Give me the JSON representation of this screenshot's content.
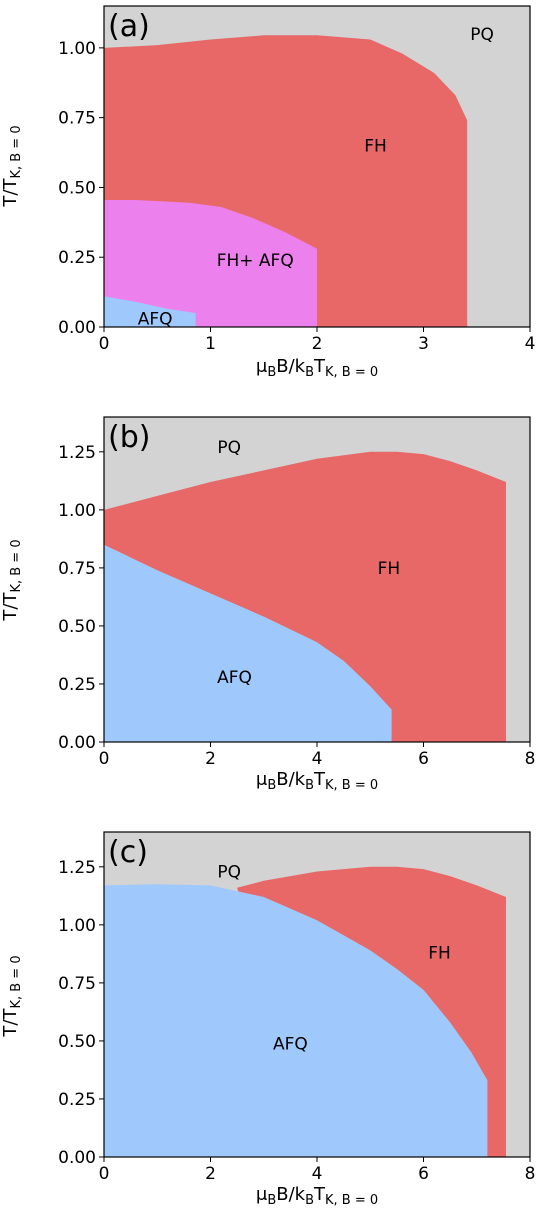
{
  "colors": {
    "PQ": "#d3d3d3",
    "FH": "#e86868",
    "AFQ": "#9fc9fc",
    "FH+ AFQ": "#ec80ec",
    "axis": "#000000"
  },
  "chart_data": [
    {
      "type": "area",
      "panel_label": "(a)",
      "xlabel": "μ_B B/k_B T_{K, B = 0}",
      "ylabel": "T/T_{K, B = 0}",
      "xlim": [
        0,
        4
      ],
      "ylim": [
        0,
        1.15
      ],
      "xticks": [
        0,
        1,
        2,
        3,
        4
      ],
      "xtick_labels": [
        "0",
        "1",
        "2",
        "3",
        "4"
      ],
      "yticks": [
        0,
        0.25,
        0.5,
        0.75,
        1.0
      ],
      "ytick_labels": [
        "0.00",
        "0.25",
        "0.50",
        "0.75",
        "1.00"
      ],
      "background_phase": "PQ",
      "grid": false,
      "regions": [
        {
          "phase": "FH",
          "boundary": [
            [
              0,
              1.0
            ],
            [
              0.5,
              1.01
            ],
            [
              1.0,
              1.03
            ],
            [
              1.5,
              1.045
            ],
            [
              2.0,
              1.045
            ],
            [
              2.5,
              1.03
            ],
            [
              2.8,
              0.98
            ],
            [
              3.1,
              0.91
            ],
            [
              3.3,
              0.83
            ],
            [
              3.41,
              0.74
            ],
            [
              3.41,
              0
            ],
            [
              0,
              0
            ]
          ]
        },
        {
          "phase": "FH+ AFQ",
          "boundary": [
            [
              0,
              0.455
            ],
            [
              0.3,
              0.455
            ],
            [
              0.8,
              0.445
            ],
            [
              1.1,
              0.43
            ],
            [
              1.4,
              0.39
            ],
            [
              1.7,
              0.34
            ],
            [
              2.0,
              0.28
            ],
            [
              2.0,
              0
            ],
            [
              0,
              0
            ]
          ]
        },
        {
          "phase": "AFQ",
          "boundary": [
            [
              0,
              0.11
            ],
            [
              0.3,
              0.09
            ],
            [
              0.6,
              0.065
            ],
            [
              0.86,
              0.05
            ],
            [
              0.86,
              0
            ],
            [
              0,
              0
            ]
          ]
        }
      ],
      "annotations": [
        {
          "text": "PQ",
          "x": 3.55,
          "y": 1.05
        },
        {
          "text": "FH",
          "x": 2.55,
          "y": 0.65
        },
        {
          "text": "FH+ AFQ",
          "x": 1.42,
          "y": 0.24
        },
        {
          "text": "AFQ",
          "x": 0.48,
          "y": 0.03
        }
      ]
    },
    {
      "type": "area",
      "panel_label": "(b)",
      "xlabel": "μ_B B/k_B T_{K, B = 0}",
      "ylabel": "T/T_{K, B = 0}",
      "xlim": [
        0,
        8
      ],
      "ylim": [
        0,
        1.4
      ],
      "xticks": [
        0,
        2,
        4,
        6,
        8
      ],
      "xtick_labels": [
        "0",
        "2",
        "4",
        "6",
        "8"
      ],
      "yticks": [
        0,
        0.25,
        0.5,
        0.75,
        1.0,
        1.25
      ],
      "ytick_labels": [
        "0.00",
        "0.25",
        "0.50",
        "0.75",
        "1.00",
        "1.25"
      ],
      "background_phase": "PQ",
      "grid": false,
      "regions": [
        {
          "phase": "FH",
          "boundary": [
            [
              0,
              1.0
            ],
            [
              1,
              1.06
            ],
            [
              2,
              1.12
            ],
            [
              3,
              1.17
            ],
            [
              4,
              1.22
            ],
            [
              5,
              1.25
            ],
            [
              5.5,
              1.25
            ],
            [
              6,
              1.24
            ],
            [
              6.5,
              1.21
            ],
            [
              7,
              1.17
            ],
            [
              7.55,
              1.12
            ],
            [
              7.55,
              0
            ],
            [
              0,
              0
            ]
          ]
        },
        {
          "phase": "AFQ",
          "boundary": [
            [
              0,
              0.85
            ],
            [
              1,
              0.74
            ],
            [
              2,
              0.64
            ],
            [
              3,
              0.54
            ],
            [
              4,
              0.43
            ],
            [
              4.5,
              0.35
            ],
            [
              5,
              0.24
            ],
            [
              5.4,
              0.14
            ],
            [
              5.4,
              0
            ],
            [
              0,
              0
            ]
          ]
        }
      ],
      "annotations": [
        {
          "text": "PQ",
          "x": 2.35,
          "y": 1.27
        },
        {
          "text": "FH",
          "x": 5.35,
          "y": 0.75
        },
        {
          "text": "AFQ",
          "x": 2.45,
          "y": 0.28
        }
      ]
    },
    {
      "type": "area",
      "panel_label": "(c)",
      "xlabel": "μ_B B/k_B T_{K, B = 0}",
      "ylabel": "T/T_{K, B = 0}",
      "xlim": [
        0,
        8
      ],
      "ylim": [
        0,
        1.4
      ],
      "xticks": [
        0,
        2,
        4,
        6,
        8
      ],
      "xtick_labels": [
        "0",
        "2",
        "4",
        "6",
        "8"
      ],
      "yticks": [
        0,
        0.25,
        0.5,
        0.75,
        1.0,
        1.25
      ],
      "ytick_labels": [
        "0.00",
        "0.25",
        "0.50",
        "0.75",
        "1.00",
        "1.25"
      ],
      "background_phase": "PQ",
      "grid": false,
      "regions": [
        {
          "phase": "FH",
          "boundary": [
            [
              2.5,
              1.16
            ],
            [
              3,
              1.19
            ],
            [
              4,
              1.23
            ],
            [
              5,
              1.25
            ],
            [
              5.5,
              1.25
            ],
            [
              6,
              1.24
            ],
            [
              6.5,
              1.21
            ],
            [
              7,
              1.17
            ],
            [
              7.55,
              1.12
            ],
            [
              7.55,
              0
            ],
            [
              4,
              0
            ]
          ]
        },
        {
          "phase": "AFQ",
          "boundary": [
            [
              0,
              1.17
            ],
            [
              1,
              1.175
            ],
            [
              2,
              1.17
            ],
            [
              3,
              1.12
            ],
            [
              4,
              1.02
            ],
            [
              5,
              0.89
            ],
            [
              5.5,
              0.81
            ],
            [
              6,
              0.72
            ],
            [
              6.5,
              0.58
            ],
            [
              6.9,
              0.45
            ],
            [
              7.2,
              0.33
            ],
            [
              7.2,
              0
            ],
            [
              0,
              0
            ]
          ]
        }
      ],
      "annotations": [
        {
          "text": "PQ",
          "x": 2.35,
          "y": 1.23
        },
        {
          "text": "FH",
          "x": 6.3,
          "y": 0.88
        },
        {
          "text": "AFQ",
          "x": 3.5,
          "y": 0.49
        }
      ]
    }
  ]
}
